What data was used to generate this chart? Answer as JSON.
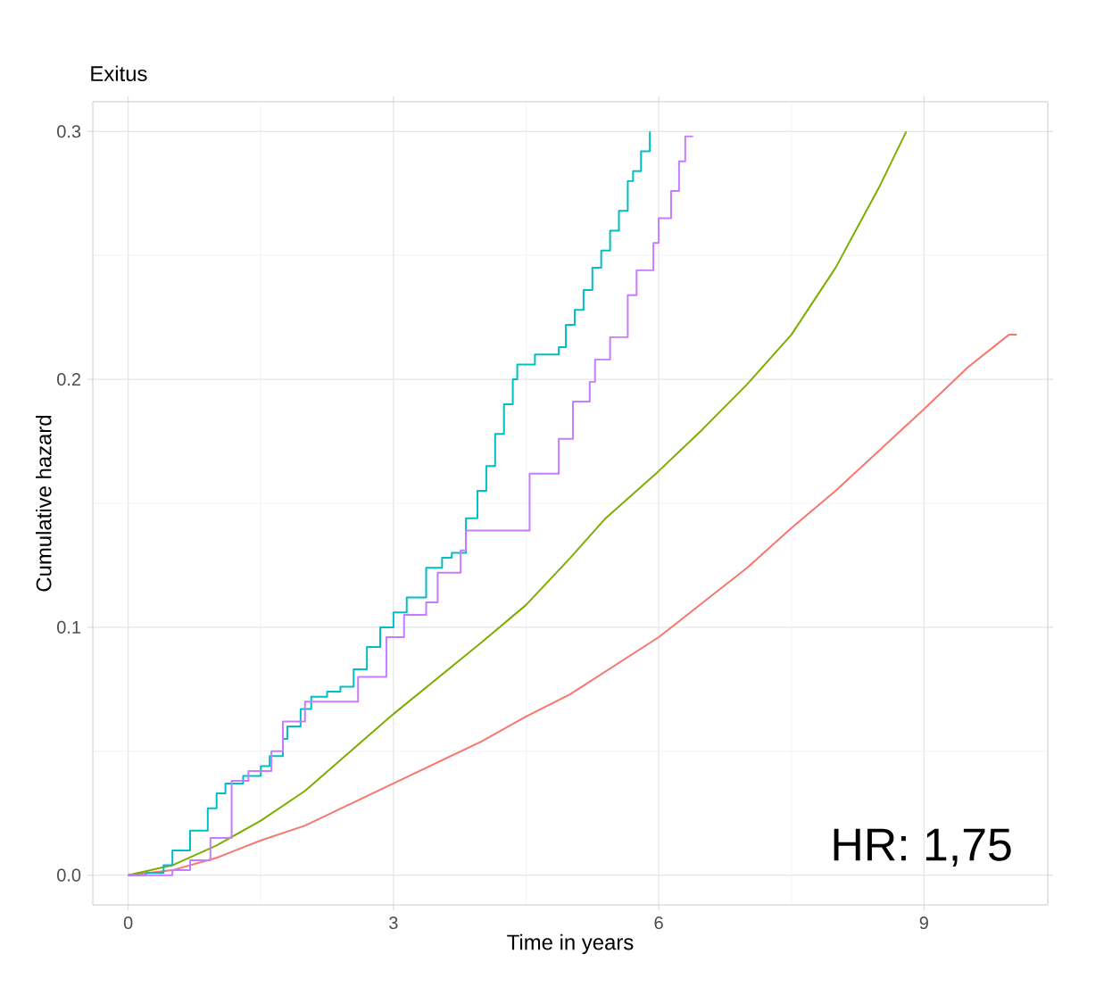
{
  "chart_data": {
    "type": "step",
    "title": "Exitus",
    "xlabel": "Time in years",
    "ylabel": "Cumulative hazard",
    "annotations": [
      "HR: 1,75"
    ],
    "xlim": [
      -0.4,
      10.4
    ],
    "ylim": [
      -0.012,
      0.312
    ],
    "xticks": [
      0,
      3,
      6,
      9
    ],
    "yticks": [
      {
        "value": 0,
        "label": "0.0"
      },
      {
        "value": 0.1,
        "label": "0.1"
      },
      {
        "value": 0.2,
        "label": "0.2"
      },
      {
        "value": 0.3,
        "label": "0.3"
      }
    ],
    "grid": true,
    "line_style": "solid",
    "series": [
      {
        "type": "line",
        "color": "#f8766d",
        "x": [
          0,
          0.5,
          1,
          1.5,
          2,
          3,
          4,
          4.5,
          5,
          6,
          7,
          7.5,
          8,
          9,
          9.5,
          9.96,
          10.05
        ],
        "values": [
          0,
          0.002,
          0.007,
          0.014,
          0.02,
          0.037,
          0.054,
          0.064,
          0.073,
          0.096,
          0.124,
          0.14,
          0.155,
          0.188,
          0.205,
          0.218,
          0.218
        ]
      },
      {
        "type": "line",
        "color": "#7cae00",
        "x": [
          0,
          0.5,
          1,
          1.5,
          2,
          3,
          4,
          4.5,
          5,
          5.4,
          6,
          6.5,
          7,
          7.5,
          8,
          8.5,
          8.8
        ],
        "values": [
          0,
          0.004,
          0.012,
          0.022,
          0.034,
          0.065,
          0.094,
          0.109,
          0.128,
          0.144,
          0.163,
          0.18,
          0.198,
          0.218,
          0.245,
          0.278,
          0.3
        ]
      },
      {
        "color": "#00bfc4",
        "x": [
          0,
          0.2,
          0.4,
          0.5,
          0.7,
          0.9,
          1.0,
          1.1,
          1.3,
          1.5,
          1.6,
          1.75,
          1.8,
          1.95,
          2.07,
          2.25,
          2.4,
          2.55,
          2.7,
          2.85,
          3.0,
          3.15,
          3.37,
          3.55,
          3.66,
          3.82,
          3.95,
          4.05,
          4.15,
          4.25,
          4.35,
          4.4,
          4.6,
          4.87,
          4.95,
          5.05,
          5.15,
          5.25,
          5.35,
          5.45,
          5.55,
          5.65,
          5.71,
          5.8,
          5.9
        ],
        "values": [
          0,
          0.001,
          0.004,
          0.01,
          0.018,
          0.027,
          0.033,
          0.037,
          0.04,
          0.044,
          0.048,
          0.055,
          0.06,
          0.067,
          0.072,
          0.074,
          0.076,
          0.083,
          0.092,
          0.1,
          0.106,
          0.112,
          0.124,
          0.128,
          0.13,
          0.144,
          0.155,
          0.165,
          0.178,
          0.19,
          0.2,
          0.206,
          0.21,
          0.213,
          0.222,
          0.228,
          0.236,
          0.245,
          0.252,
          0.26,
          0.268,
          0.28,
          0.284,
          0.292,
          0.3
        ]
      },
      {
        "color": "#c77cff",
        "x": [
          0,
          0.5,
          0.7,
          0.93,
          1.17,
          1.36,
          1.62,
          1.75,
          2.0,
          2.2,
          2.6,
          2.92,
          3.12,
          3.37,
          3.5,
          3.76,
          3.82,
          4.28,
          4.54,
          4.87,
          5.03,
          5.22,
          5.28,
          5.45,
          5.65,
          5.75,
          5.94,
          6.0,
          6.14,
          6.23,
          6.3,
          6.39
        ],
        "values": [
          0,
          0.002,
          0.006,
          0.015,
          0.038,
          0.042,
          0.05,
          0.062,
          0.07,
          0.07,
          0.08,
          0.096,
          0.105,
          0.11,
          0.122,
          0.131,
          0.139,
          0.139,
          0.162,
          0.176,
          0.191,
          0.199,
          0.208,
          0.217,
          0.234,
          0.244,
          0.255,
          0.265,
          0.276,
          0.288,
          0.298,
          0.298
        ]
      }
    ]
  }
}
